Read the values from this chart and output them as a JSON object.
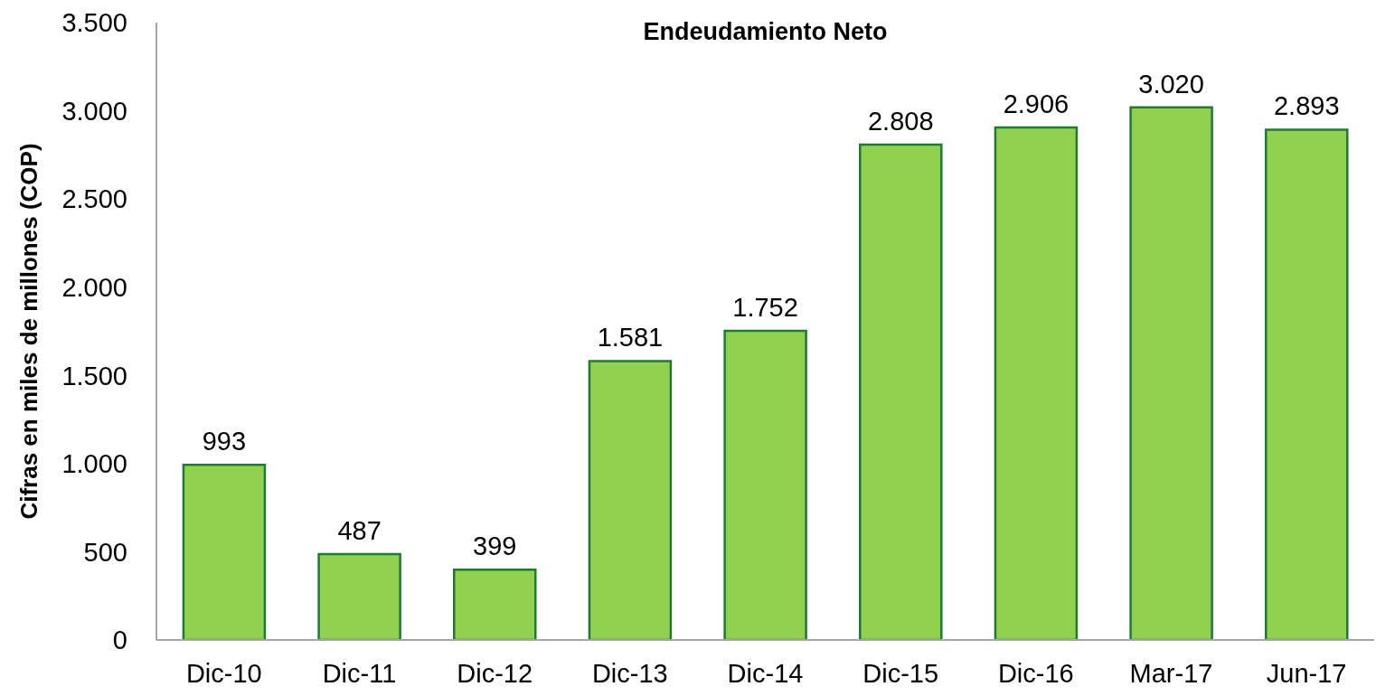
{
  "chart_data": {
    "type": "bar",
    "title": "Endeudamiento Neto",
    "ylabel": "Cifras en miles de millones (COP)",
    "categories": [
      "Dic-10",
      "Dic-11",
      "Dic-12",
      "Dic-13",
      "Dic-14",
      "Dic-15",
      "Dic-16",
      "Mar-17",
      "Jun-17"
    ],
    "values": [
      993,
      487,
      399,
      1581,
      1752,
      2808,
      2906,
      3020,
      2893
    ],
    "color": "#92d050",
    "value_labels": [
      "993",
      "487",
      "399",
      "1.581",
      "1.752",
      "2.808",
      "2.906",
      "3.020",
      "2.893"
    ],
    "ylim": [
      0,
      3500
    ],
    "yticks": [
      0,
      500,
      {
        "value": 1000,
        "label": "1.000"
      },
      {
        "value": 1500,
        "label": "1.500"
      },
      {
        "value": 2000,
        "label": "2.000"
      },
      {
        "value": 2500,
        "label": "2.500"
      },
      {
        "value": 3000,
        "label": "3.000"
      },
      {
        "value": 3500,
        "label": "3.500"
      }
    ]
  }
}
